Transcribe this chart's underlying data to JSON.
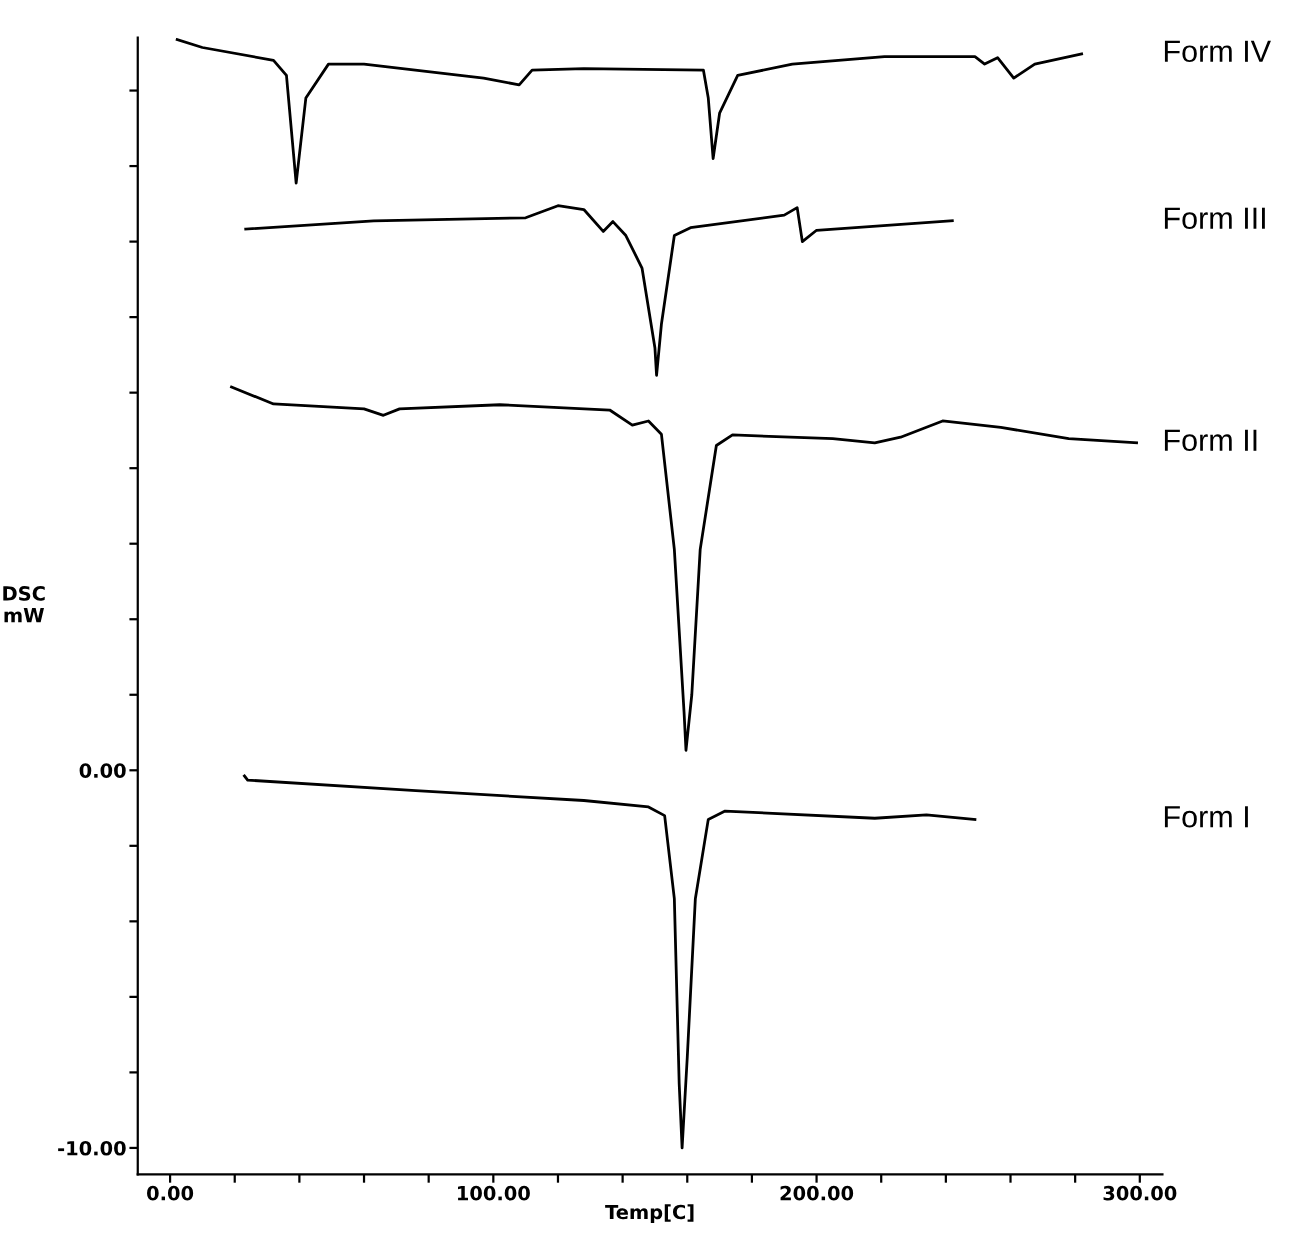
{
  "chart_data": {
    "type": "line",
    "xlabel": "Temp[C]",
    "ylabel": "DSC\nmW",
    "xlim": [
      -10,
      307
    ],
    "ylim": [
      -10.7,
      19.4
    ],
    "xticks": [
      {
        "value": 0,
        "label": "0.00"
      },
      {
        "value": 20,
        "label": null
      },
      {
        "value": 40,
        "label": null
      },
      {
        "value": 60,
        "label": null
      },
      {
        "value": 80,
        "label": null
      },
      {
        "value": 100,
        "label": "100.00"
      },
      {
        "value": 120,
        "label": null
      },
      {
        "value": 140,
        "label": null
      },
      {
        "value": 160,
        "label": null
      },
      {
        "value": 180,
        "label": null
      },
      {
        "value": 200,
        "label": "200.00"
      },
      {
        "value": 220,
        "label": null
      },
      {
        "value": 240,
        "label": null
      },
      {
        "value": 260,
        "label": null
      },
      {
        "value": 280,
        "label": null
      },
      {
        "value": 300,
        "label": "300.00"
      }
    ],
    "yticks": [
      {
        "value": -10,
        "label": "-10.00"
      },
      {
        "value": -8,
        "label": null
      },
      {
        "value": -6,
        "label": null
      },
      {
        "value": -4,
        "label": null
      },
      {
        "value": -2,
        "label": null
      },
      {
        "value": 0,
        "label": "0.00"
      },
      {
        "value": 2,
        "label": null
      },
      {
        "value": 4,
        "label": null
      },
      {
        "value": 6,
        "label": null
      },
      {
        "value": 8,
        "label": null
      },
      {
        "value": 10,
        "label": null
      },
      {
        "value": 12,
        "label": null
      },
      {
        "value": 14,
        "label": null
      },
      {
        "value": 16,
        "label": null
      },
      {
        "value": 18,
        "label": null
      }
    ],
    "marker": "none",
    "line_style": "solid",
    "series": [
      {
        "name": "Form IV",
        "color": "#000000",
        "x": [
          2.2,
          10,
          32,
          36,
          39,
          42,
          49,
          60,
          97,
          108,
          112,
          128,
          165,
          166.5,
          168,
          170,
          175.6,
          192.5,
          221,
          249,
          252,
          256,
          261,
          267.5,
          282
        ],
        "values": [
          19.35,
          19.14,
          18.8,
          18.4,
          15.55,
          17.8,
          18.7,
          18.7,
          18.33,
          18.15,
          18.54,
          18.58,
          18.54,
          17.8,
          16.2,
          17.4,
          18.4,
          18.7,
          18.9,
          18.9,
          18.7,
          18.87,
          18.33,
          18.7,
          18.97
        ]
      },
      {
        "name": "Form III",
        "color": "#000000",
        "x": [
          23.4,
          63,
          110,
          120,
          128,
          134,
          137,
          141,
          146,
          150,
          150.5,
          152,
          156,
          161,
          190,
          194,
          195.6,
          200,
          242
        ],
        "values": [
          14.33,
          14.55,
          14.63,
          14.95,
          14.85,
          14.27,
          14.53,
          14.16,
          13.3,
          11.18,
          10.46,
          11.81,
          14.16,
          14.37,
          14.7,
          14.9,
          14.0,
          14.3,
          14.55
        ]
      },
      {
        "name": "Form II",
        "color": "#000000",
        "x": [
          19,
          32,
          60,
          66,
          71,
          102,
          136,
          143,
          148,
          152,
          156,
          159,
          159.6,
          161.4,
          164,
          169,
          174,
          205,
          218,
          226,
          239,
          257,
          278,
          299
        ],
        "values": [
          10.15,
          9.7,
          9.57,
          9.4,
          9.57,
          9.68,
          9.54,
          9.14,
          9.25,
          8.9,
          5.85,
          1.55,
          0.53,
          2.0,
          5.85,
          8.6,
          8.88,
          8.78,
          8.67,
          8.82,
          9.25,
          9.08,
          8.78,
          8.67
        ]
      },
      {
        "name": "Form I",
        "color": "#000000",
        "x": [
          23,
          24,
          76,
          128,
          148,
          153,
          156,
          157.5,
          158.4,
          160,
          162.5,
          166.5,
          171.7,
          218,
          234,
          249
        ],
        "values": [
          -0.15,
          -0.26,
          -0.54,
          -0.8,
          -0.97,
          -1.2,
          -3.4,
          -8.3,
          -10.0,
          -7.6,
          -3.4,
          -1.3,
          -1.08,
          -1.27,
          -1.18,
          -1.3
        ]
      }
    ]
  }
}
